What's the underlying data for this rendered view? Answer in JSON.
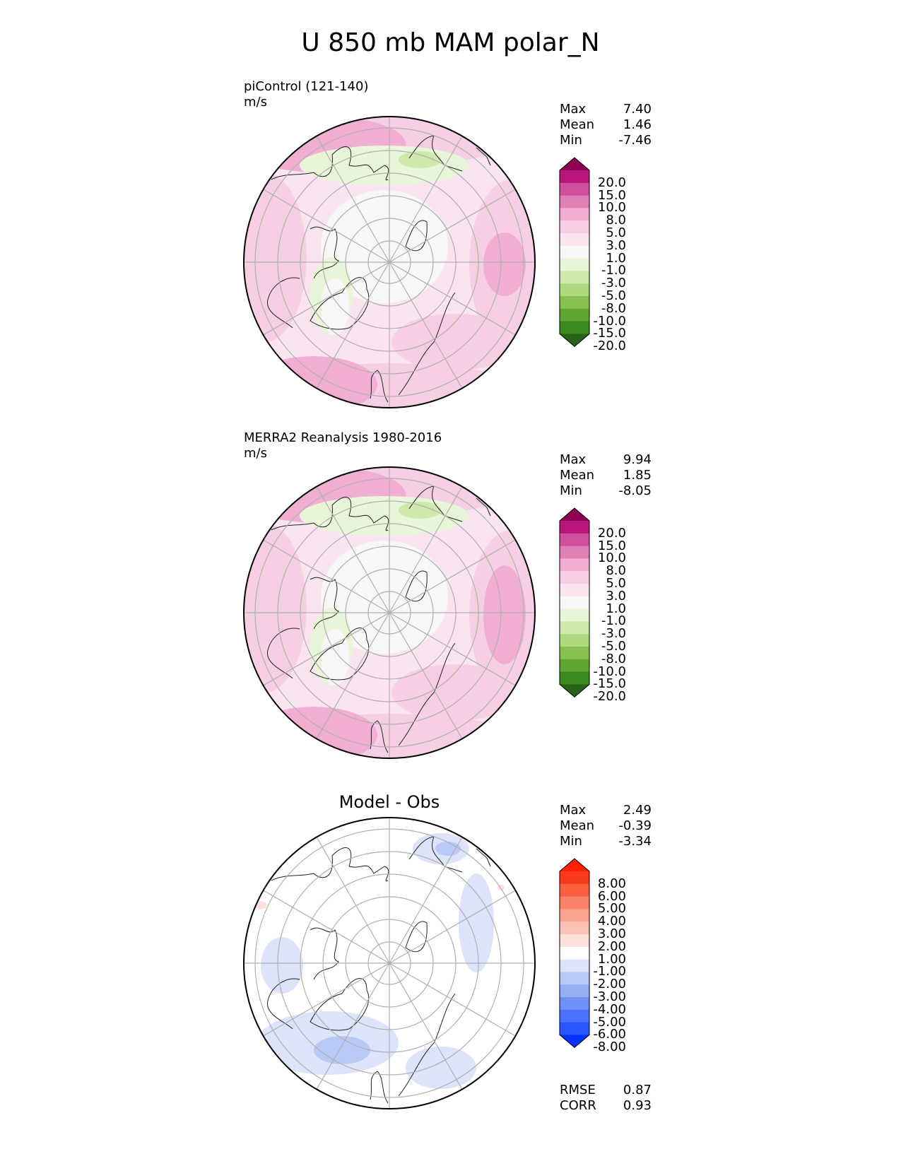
{
  "title": "U 850 mb MAM polar_N",
  "colors": {
    "pink_green": [
      "#276419",
      "#3d8a1f",
      "#5ea62f",
      "#86c152",
      "#aed97e",
      "#cfe9ad",
      "#e9f5d8",
      "#f7f7f7",
      "#fae4f0",
      "#f7cfe4",
      "#f0aed3",
      "#e17fb7",
      "#d14f9b",
      "#b8167a",
      "#8e0152"
    ],
    "blue_red": [
      "#0532ff",
      "#2a55ff",
      "#4a72ff",
      "#6f8ff7",
      "#95aff5",
      "#b9c9f6",
      "#dde3fa",
      "#ffffff",
      "#fde0d9",
      "#fcc2b6",
      "#fca38f",
      "#fb8468",
      "#fa6040",
      "#f83a1a",
      "#ff2000"
    ]
  },
  "panels": [
    {
      "label": "piControl (121-140)",
      "units": "m/s",
      "stats": {
        "max_label": "Max",
        "max": "7.40",
        "mean_label": "Mean",
        "mean": "1.46",
        "min_label": "Min",
        "min": "-7.46"
      },
      "colorbar": {
        "palette": "pink_green",
        "ticks": [
          "20.0",
          "15.0",
          "10.0",
          "8.0",
          "5.0",
          "3.0",
          "1.0",
          "-1.0",
          "-3.0",
          "-5.0",
          "-8.0",
          "-10.0",
          "-15.0",
          "-20.0"
        ]
      }
    },
    {
      "label": "MERRA2 Reanalysis 1980-2016",
      "units": "m/s",
      "stats": {
        "max_label": "Max",
        "max": "9.94",
        "mean_label": "Mean",
        "mean": "1.85",
        "min_label": "Min",
        "min": "-8.05"
      },
      "colorbar": {
        "palette": "pink_green",
        "ticks": [
          "20.0",
          "15.0",
          "10.0",
          "8.0",
          "5.0",
          "3.0",
          "1.0",
          "-1.0",
          "-3.0",
          "-5.0",
          "-8.0",
          "-10.0",
          "-15.0",
          "-20.0"
        ]
      }
    },
    {
      "label": "Model - Obs",
      "units": "",
      "stats": {
        "max_label": "Max",
        "max": "2.49",
        "mean_label": "Mean",
        "mean": "-0.39",
        "min_label": "Min",
        "min": "-3.34"
      },
      "colorbar": {
        "palette": "blue_red",
        "ticks": [
          "8.00",
          "6.00",
          "5.00",
          "4.00",
          "3.00",
          "2.00",
          "1.00",
          "-1.00",
          "-2.00",
          "-3.00",
          "-4.00",
          "-5.00",
          "-6.00",
          "-8.00"
        ]
      },
      "metrics": {
        "rmse_label": "RMSE",
        "rmse": "0.87",
        "corr_label": "CORR",
        "corr": "0.93"
      }
    }
  ],
  "chart_data": [
    {
      "type": "heatmap",
      "title": "piControl (121-140)",
      "units": "m/s",
      "projection": "north-polar-stereographic",
      "stats": {
        "max": 7.4,
        "mean": 1.46,
        "min": -7.46
      },
      "levels": [
        -20,
        -15,
        -10,
        -8,
        -5,
        -3,
        -1,
        1,
        3,
        5,
        8,
        10,
        15,
        20
      ],
      "grid": true
    },
    {
      "type": "heatmap",
      "title": "MERRA2 Reanalysis 1980-2016",
      "units": "m/s",
      "projection": "north-polar-stereographic",
      "stats": {
        "max": 9.94,
        "mean": 1.85,
        "min": -8.05
      },
      "levels": [
        -20,
        -15,
        -10,
        -8,
        -5,
        -3,
        -1,
        1,
        3,
        5,
        8,
        10,
        15,
        20
      ],
      "grid": true
    },
    {
      "type": "heatmap",
      "title": "Model - Obs",
      "projection": "north-polar-stereographic",
      "stats": {
        "max": 2.49,
        "mean": -0.39,
        "min": -3.34
      },
      "levels": [
        -8,
        -6,
        -5,
        -4,
        -3,
        -2,
        -1,
        1,
        2,
        3,
        4,
        5,
        6,
        8
      ],
      "metrics": {
        "rmse": 0.87,
        "corr": 0.93
      },
      "grid": true
    }
  ]
}
